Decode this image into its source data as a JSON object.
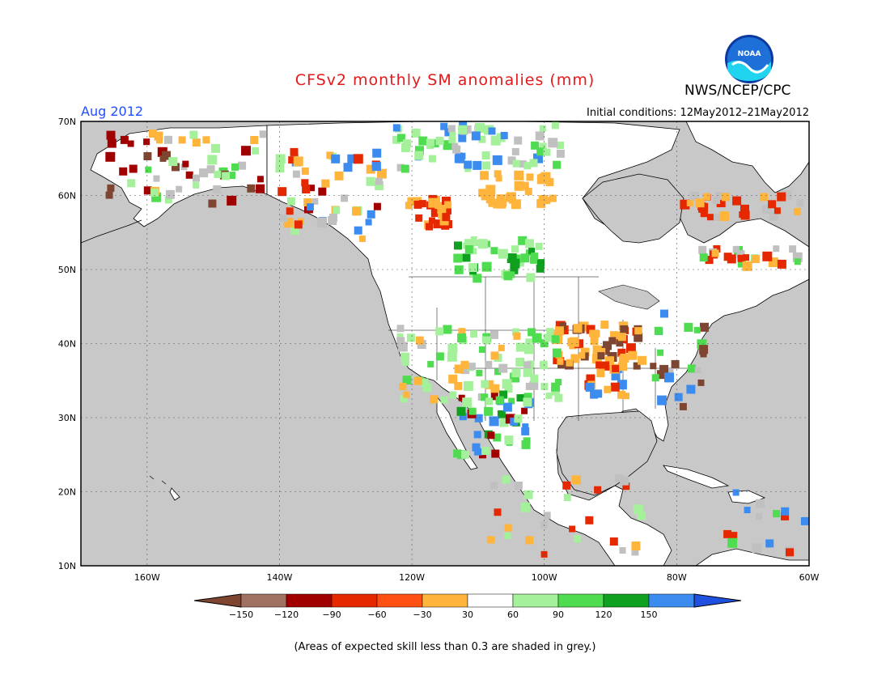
{
  "header": {
    "title": "CFSv2 monthly SM anomalies (mm)",
    "agency": "NWS/NCEP/CPC",
    "logo_text": "NOAA",
    "target_month": "Aug 2012",
    "initial_conditions": "Initial conditions: 12May2012–21May2012"
  },
  "map": {
    "lat_range": [
      10,
      70
    ],
    "lon_range": [
      -170,
      -60
    ],
    "lat_labels": [
      "70N",
      "60N",
      "50N",
      "40N",
      "30N",
      "20N",
      "10N"
    ],
    "lon_labels": [
      "160W",
      "140W",
      "120W",
      "100W",
      "80W",
      "60W"
    ],
    "ocean_color": "#c8c8c8",
    "land_color": "#ffffff"
  },
  "colorbar": {
    "tick_labels": [
      "−150",
      "−120",
      "−90",
      "−60",
      "−30",
      "30",
      "60",
      "90",
      "120",
      "150"
    ],
    "bin_colors": [
      "#7e4630",
      "#a07060",
      "#a00000",
      "#e62800",
      "#ff5014",
      "#ffb43c",
      "#ffffff",
      "#a5f09b",
      "#50dc50",
      "#10a020",
      "#3c8cf0",
      "#2050e0"
    ]
  },
  "anomaly_legend": {
    "dry_strong": "#7e4630",
    "dry_brown": "#a07060",
    "dry_darkred": "#a00000",
    "dry_red": "#e62800",
    "dry_orange": "#ffb43c",
    "wet_light": "#a5f09b",
    "wet_green": "#50dc50",
    "wet_dark": "#10a020",
    "wet_blue": "#3c8cf0",
    "low_skill_grey": "#c0c0c0"
  },
  "footnote": "(Areas of expected skill less than 0.3 are shaded in grey.)"
}
